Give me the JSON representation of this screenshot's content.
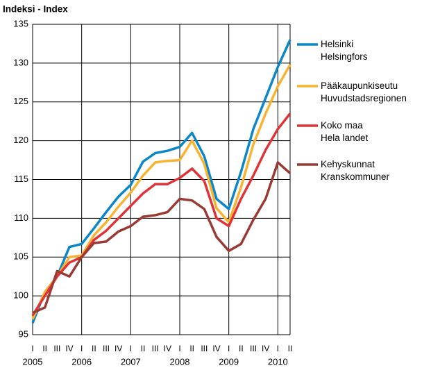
{
  "chart_data": {
    "type": "line",
    "title": "Indeksi - Index",
    "categories": [
      "I",
      "II",
      "III",
      "IV",
      "I",
      "II",
      "III",
      "IV",
      "I",
      "II",
      "III",
      "IV",
      "I",
      "II",
      "III",
      "IV",
      "I",
      "II",
      "III",
      "IV",
      "I",
      "II"
    ],
    "years": [
      "2005",
      null,
      null,
      null,
      "2006",
      null,
      null,
      null,
      "2007",
      null,
      null,
      null,
      "2008",
      null,
      null,
      null,
      "2009",
      null,
      null,
      null,
      "2010",
      null
    ],
    "series": [
      {
        "name": "Helsinki\nHelsingfors",
        "color": "#0b86c9",
        "values": [
          96.5,
          100.5,
          102.5,
          106.3,
          106.7,
          108.7,
          110.8,
          112.8,
          114.3,
          117.3,
          118.4,
          118.7,
          119.2,
          121,
          118,
          112.5,
          111.2,
          116,
          121.5,
          125.5,
          129.5,
          133
        ]
      },
      {
        "name": "Pääkaupunkiseutu\nHuvudstadsregionen",
        "color": "#f8b331",
        "values": [
          97,
          100.5,
          102.5,
          105,
          105.2,
          107.8,
          109.5,
          111.5,
          113.3,
          115.5,
          117.2,
          117.4,
          117.5,
          120,
          117,
          111.3,
          109.5,
          114,
          119.5,
          123.5,
          127,
          129.8
        ]
      },
      {
        "name": "Koko maa\nHela landet",
        "color": "#e03338",
        "values": [
          97.5,
          100,
          102.5,
          104.3,
          105,
          107.2,
          108.4,
          110,
          111.6,
          113.2,
          114.4,
          114.4,
          115.2,
          116.4,
          114.8,
          110,
          109,
          112.5,
          115.5,
          118.8,
          121.5,
          123.5
        ]
      },
      {
        "name": "Kehyskunnat\nKranskommuner",
        "color": "#9b3a35",
        "values": [
          97.8,
          98.5,
          103.2,
          102.5,
          105,
          106.8,
          107,
          108.3,
          109,
          110.2,
          110.4,
          110.8,
          112.5,
          112.3,
          111.2,
          107.6,
          105.8,
          106.7,
          109.8,
          112.5,
          117.2,
          115.8
        ]
      }
    ],
    "ylim": [
      95,
      135
    ],
    "yticks": [
      95,
      100,
      105,
      110,
      115,
      120,
      125,
      130,
      135
    ],
    "grid": true
  }
}
